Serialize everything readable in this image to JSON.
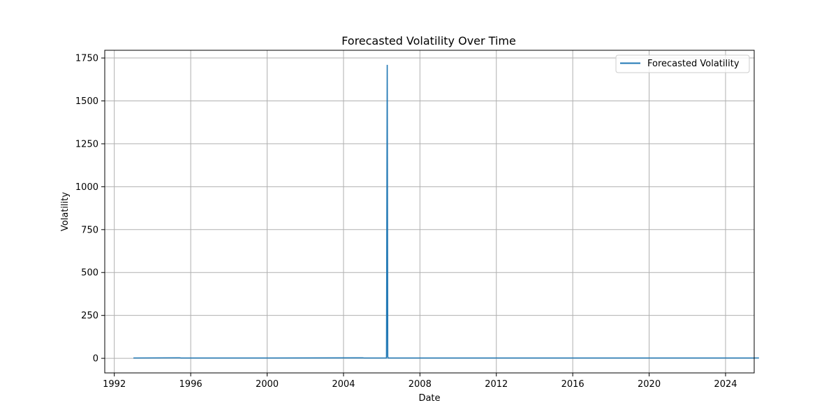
{
  "chart_data": {
    "type": "line",
    "title": "Forecasted Volatility Over Time",
    "xlabel": "Date",
    "ylabel": "Volatility",
    "x_ticks": [
      "1992",
      "1996",
      "2000",
      "2004",
      "2008",
      "2012",
      "2016",
      "2020",
      "2024"
    ],
    "y_ticks": [
      "0",
      "250",
      "500",
      "750",
      "1000",
      "1250",
      "1500",
      "1750"
    ],
    "xlim": [
      "1991-07",
      "2025-07"
    ],
    "ylim": [
      -85,
      1795
    ],
    "grid": true,
    "legend_position": "top-right",
    "colors": {
      "series": "#1f77b4",
      "grid": "#b0b0b0"
    },
    "series": [
      {
        "name": "Forecasted Volatility",
        "points": [
          [
            "1993-01",
            2
          ],
          [
            "1995-06",
            3
          ],
          [
            "1995-07",
            2
          ],
          [
            "2000-01",
            2
          ],
          [
            "2005-01",
            3
          ],
          [
            "2005-02",
            2
          ],
          [
            "2006-04",
            2
          ],
          [
            "2006-04-15",
            1710
          ],
          [
            "2006-04-25",
            10
          ],
          [
            "2006-05",
            2
          ],
          [
            "2010-01",
            2
          ],
          [
            "2015-01",
            2
          ],
          [
            "2020-01",
            2
          ],
          [
            "2025-10",
            2
          ]
        ]
      }
    ]
  }
}
